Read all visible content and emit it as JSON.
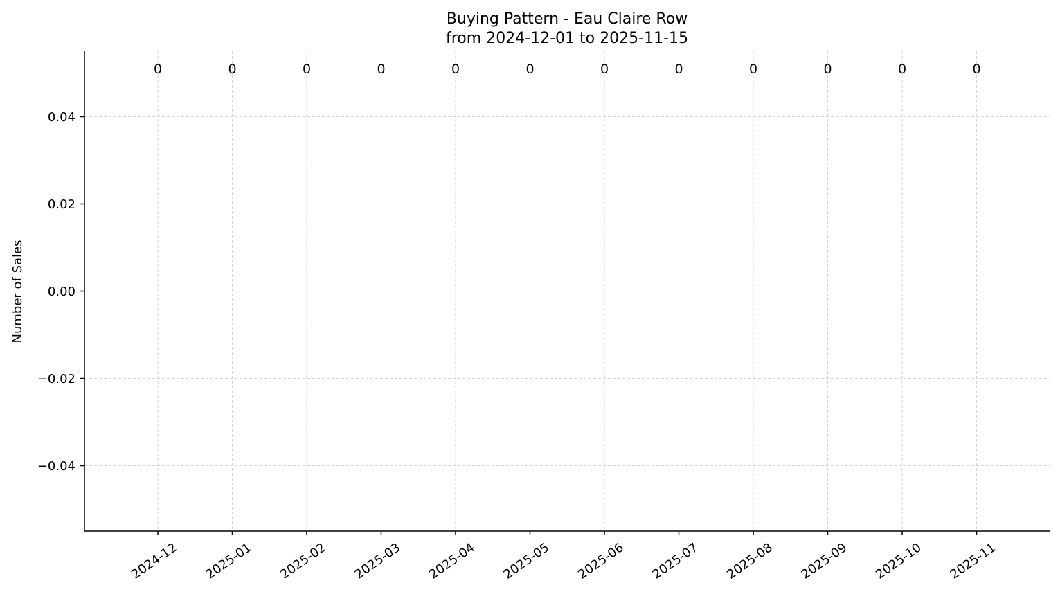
{
  "chart_data": {
    "type": "bar",
    "title": "Buying Pattern - Eau Claire Row",
    "subtitle": "from 2024-12-01 to 2025-11-15",
    "xlabel": "",
    "ylabel": "Number of Sales",
    "categories": [
      "2024-12",
      "2025-01",
      "2025-02",
      "2025-03",
      "2025-04",
      "2025-05",
      "2025-06",
      "2025-07",
      "2025-08",
      "2025-09",
      "2025-10",
      "2025-11"
    ],
    "values": [
      0,
      0,
      0,
      0,
      0,
      0,
      0,
      0,
      0,
      0,
      0,
      0
    ],
    "data_labels": [
      "0",
      "0",
      "0",
      "0",
      "0",
      "0",
      "0",
      "0",
      "0",
      "0",
      "0",
      "0"
    ],
    "ylim": [
      -0.055,
      0.055
    ],
    "y_ticks": [
      0.04,
      0.02,
      0.0,
      -0.02,
      -0.04
    ],
    "y_tick_labels": [
      "0.04",
      "0.02",
      "0.00",
      "−0.02",
      "−0.04"
    ],
    "grid": true,
    "legend": "none",
    "colors": {
      "axis": "#000000",
      "grid": "#d3d3d3",
      "text": "#000000"
    }
  }
}
